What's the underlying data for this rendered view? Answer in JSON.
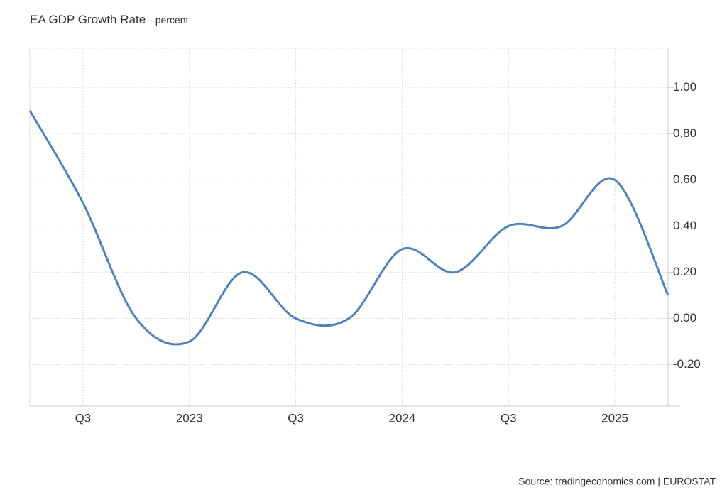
{
  "chart_data": {
    "type": "line",
    "title": "EA GDP Growth Rate",
    "subtitle": "- percent",
    "source": "Source: tradingeconomics.com | EUROSTAT",
    "categories": [
      null,
      "Q3",
      null,
      "2023",
      null,
      "Q3",
      null,
      "2024",
      null,
      "Q3",
      null,
      "2025",
      null
    ],
    "series": [
      {
        "name": "EA GDP Growth Rate",
        "color": "#4f81bd",
        "values": [
          0.9,
          0.5,
          0.0,
          -0.1,
          0.2,
          0.0,
          0.0,
          0.3,
          0.2,
          0.4,
          0.4,
          0.6,
          0.1
        ]
      }
    ],
    "ylim": [
      -0.38,
      1.17
    ],
    "yticks": [
      {
        "value": -0.2,
        "label": "-0.20"
      },
      {
        "value": 0,
        "label": "0.00"
      },
      {
        "value": 0.2,
        "label": "0.20"
      },
      {
        "value": 0.4,
        "label": "0.40"
      },
      {
        "value": 0.6,
        "label": "0.60"
      },
      {
        "value": 0.8,
        "label": "0.80"
      },
      {
        "value": 1.0,
        "label": "1.00"
      }
    ],
    "grid": true
  }
}
